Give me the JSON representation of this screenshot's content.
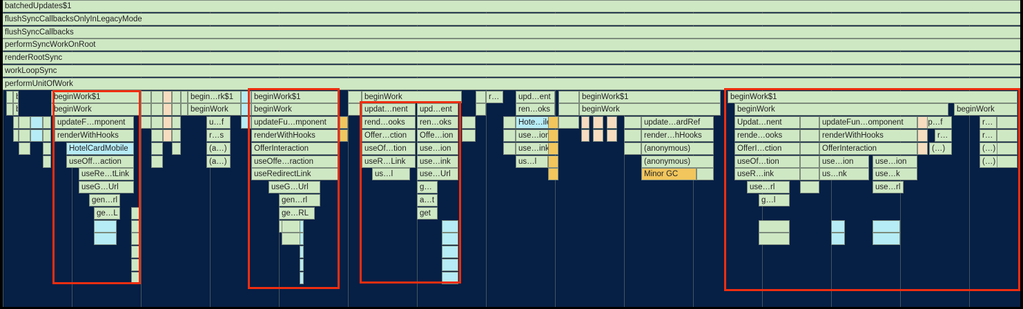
{
  "colors": {
    "background": "#061f45",
    "frame": "#cfe8c4",
    "frame_blue": "#b6ecf5",
    "frame_yellow": "#f2c65c",
    "frame_peach": "#f7dcc0",
    "highlight": "#ee2e10"
  },
  "full_rows": [
    "batchedUpdates$1",
    "flushSyncCallbacksOnlyInLegacyMode",
    "flushSyncCallbacks",
    "performSyncWorkOnRoot",
    "renderRootSync",
    "workLoopSync",
    "performUnitOfWork"
  ],
  "frames": [
    [
      "be…$1",
      0,
      15,
      23
    ],
    [
      "be…rk",
      0,
      15,
      23
    ],
    [
      "beginWork$1",
      0,
      70,
      200
    ],
    [
      "beginWork",
      0,
      70,
      200
    ],
    [
      "updateF…mponent",
      0,
      75,
      190
    ],
    [
      "renderWithHooks",
      0,
      75,
      190
    ],
    [
      "HotelCardMobile",
      1,
      92,
      190
    ],
    [
      "useOff…action",
      0,
      92,
      190
    ],
    [
      "useRe…tLink",
      0,
      110,
      190
    ],
    [
      "useG…Url",
      0,
      110,
      190
    ],
    [
      "gen…rl",
      0,
      125,
      170
    ],
    [
      "ge…L",
      0,
      132,
      170
    ],
    [
      "begin…rk$1",
      0,
      268,
      345
    ],
    [
      "beginWork",
      0,
      268,
      345
    ],
    [
      "u…f",
      0,
      295,
      330
    ],
    [
      "r…s",
      0,
      295,
      330
    ],
    [
      "(a…)",
      0,
      295,
      330
    ],
    [
      "(a…)",
      0,
      295,
      330
    ],
    [
      "beginWork$1",
      0,
      360,
      488
    ],
    [
      "beginWork",
      0,
      360,
      488
    ],
    [
      "updateFu…mponent",
      0,
      360,
      488
    ],
    [
      "renderWithHooks",
      0,
      360,
      488
    ],
    [
      "OfferInteraction",
      0,
      360,
      488
    ],
    [
      "useOffe…raction",
      0,
      360,
      488
    ],
    [
      "useRedirectLink",
      0,
      360,
      488
    ],
    [
      "useG…Url",
      0,
      385,
      460
    ],
    [
      "gen…rl",
      0,
      400,
      460
    ],
    [
      "ge…RL",
      0,
      400,
      452
    ],
    [
      "(…)",
      0,
      400,
      432
    ],
    [
      "beginWork",
      0,
      520,
      665
    ],
    [
      "updat…nent",
      0,
      520,
      598
    ],
    [
      "upd…ent",
      0,
      600,
      660
    ],
    [
      "rend…ooks",
      0,
      520,
      598
    ],
    [
      "ren…oks",
      0,
      600,
      660
    ],
    [
      "Offer…ction",
      0,
      520,
      598
    ],
    [
      "Offe…ion",
      0,
      600,
      660
    ],
    [
      "useOf…tion",
      0,
      520,
      598
    ],
    [
      "use…ion",
      0,
      600,
      660
    ],
    [
      "useR…Link",
      0,
      520,
      598
    ],
    [
      "use…ink",
      0,
      600,
      660
    ],
    [
      "us…l",
      0,
      535,
      590
    ],
    [
      "use…Url",
      0,
      600,
      660
    ],
    [
      "g…",
      0,
      600,
      630
    ],
    [
      "a…t",
      0,
      600,
      630
    ],
    [
      "get",
      0,
      600,
      630
    ],
    [
      "r…",
      0,
      700,
      725
    ],
    [
      "upd…ent",
      0,
      743,
      800
    ],
    [
      "ren…oks",
      0,
      743,
      800
    ],
    [
      "Hote…ile",
      1,
      743,
      800
    ],
    [
      "use…ion",
      0,
      743,
      800
    ],
    [
      "use…ink",
      0,
      743,
      800
    ],
    [
      "us…l",
      0,
      743,
      790
    ],
    [
      "beginWork$1",
      0,
      835,
      1040
    ],
    [
      "beginWork",
      0,
      835,
      1040
    ],
    [
      "update…ardRef",
      0,
      925,
      1030
    ],
    [
      "render…hHooks",
      0,
      925,
      1030
    ],
    [
      "(anonymous)",
      0,
      925,
      1030
    ],
    [
      "(anonymous)",
      0,
      925,
      1030
    ],
    [
      "Minor GC",
      2,
      925,
      1005
    ],
    [
      "beginWork$1",
      0,
      1050,
      1470
    ],
    [
      "beginWork",
      0,
      1060,
      1370
    ],
    [
      "beginWork",
      0,
      1378,
      1470
    ],
    [
      "Updat…nent",
      0,
      1060,
      1155
    ],
    [
      "updateFun…omponent",
      0,
      1183,
      1325
    ],
    [
      "up…f",
      0,
      1330,
      1375
    ],
    [
      "r…",
      0,
      1415,
      1440
    ],
    [
      "rende…ooks",
      0,
      1060,
      1155
    ],
    [
      "renderWithHooks",
      0,
      1183,
      1325
    ],
    [
      "r…",
      0,
      1350,
      1375
    ],
    [
      "r…",
      0,
      1415,
      1440
    ],
    [
      "OfferI…ction",
      0,
      1060,
      1155
    ],
    [
      "OfferInteraction",
      0,
      1183,
      1325
    ],
    [
      "(…)",
      0,
      1342,
      1375
    ],
    [
      "(…)",
      0,
      1415,
      1445
    ],
    [
      "useOf…tion",
      0,
      1060,
      1155
    ],
    [
      "use…ion",
      0,
      1183,
      1255
    ],
    [
      "use…ion",
      0,
      1260,
      1325
    ],
    [
      "(…)",
      0,
      1415,
      1445
    ],
    [
      "useR…ink",
      0,
      1060,
      1155
    ],
    [
      "us…nk",
      0,
      1183,
      1255
    ],
    [
      "use…k",
      0,
      1260,
      1325
    ],
    [
      "use…rl",
      0,
      1078,
      1140
    ],
    [
      "use…rl",
      0,
      1260,
      1305
    ],
    [
      "g…l",
      0,
      1095,
      1140
    ]
  ]
}
